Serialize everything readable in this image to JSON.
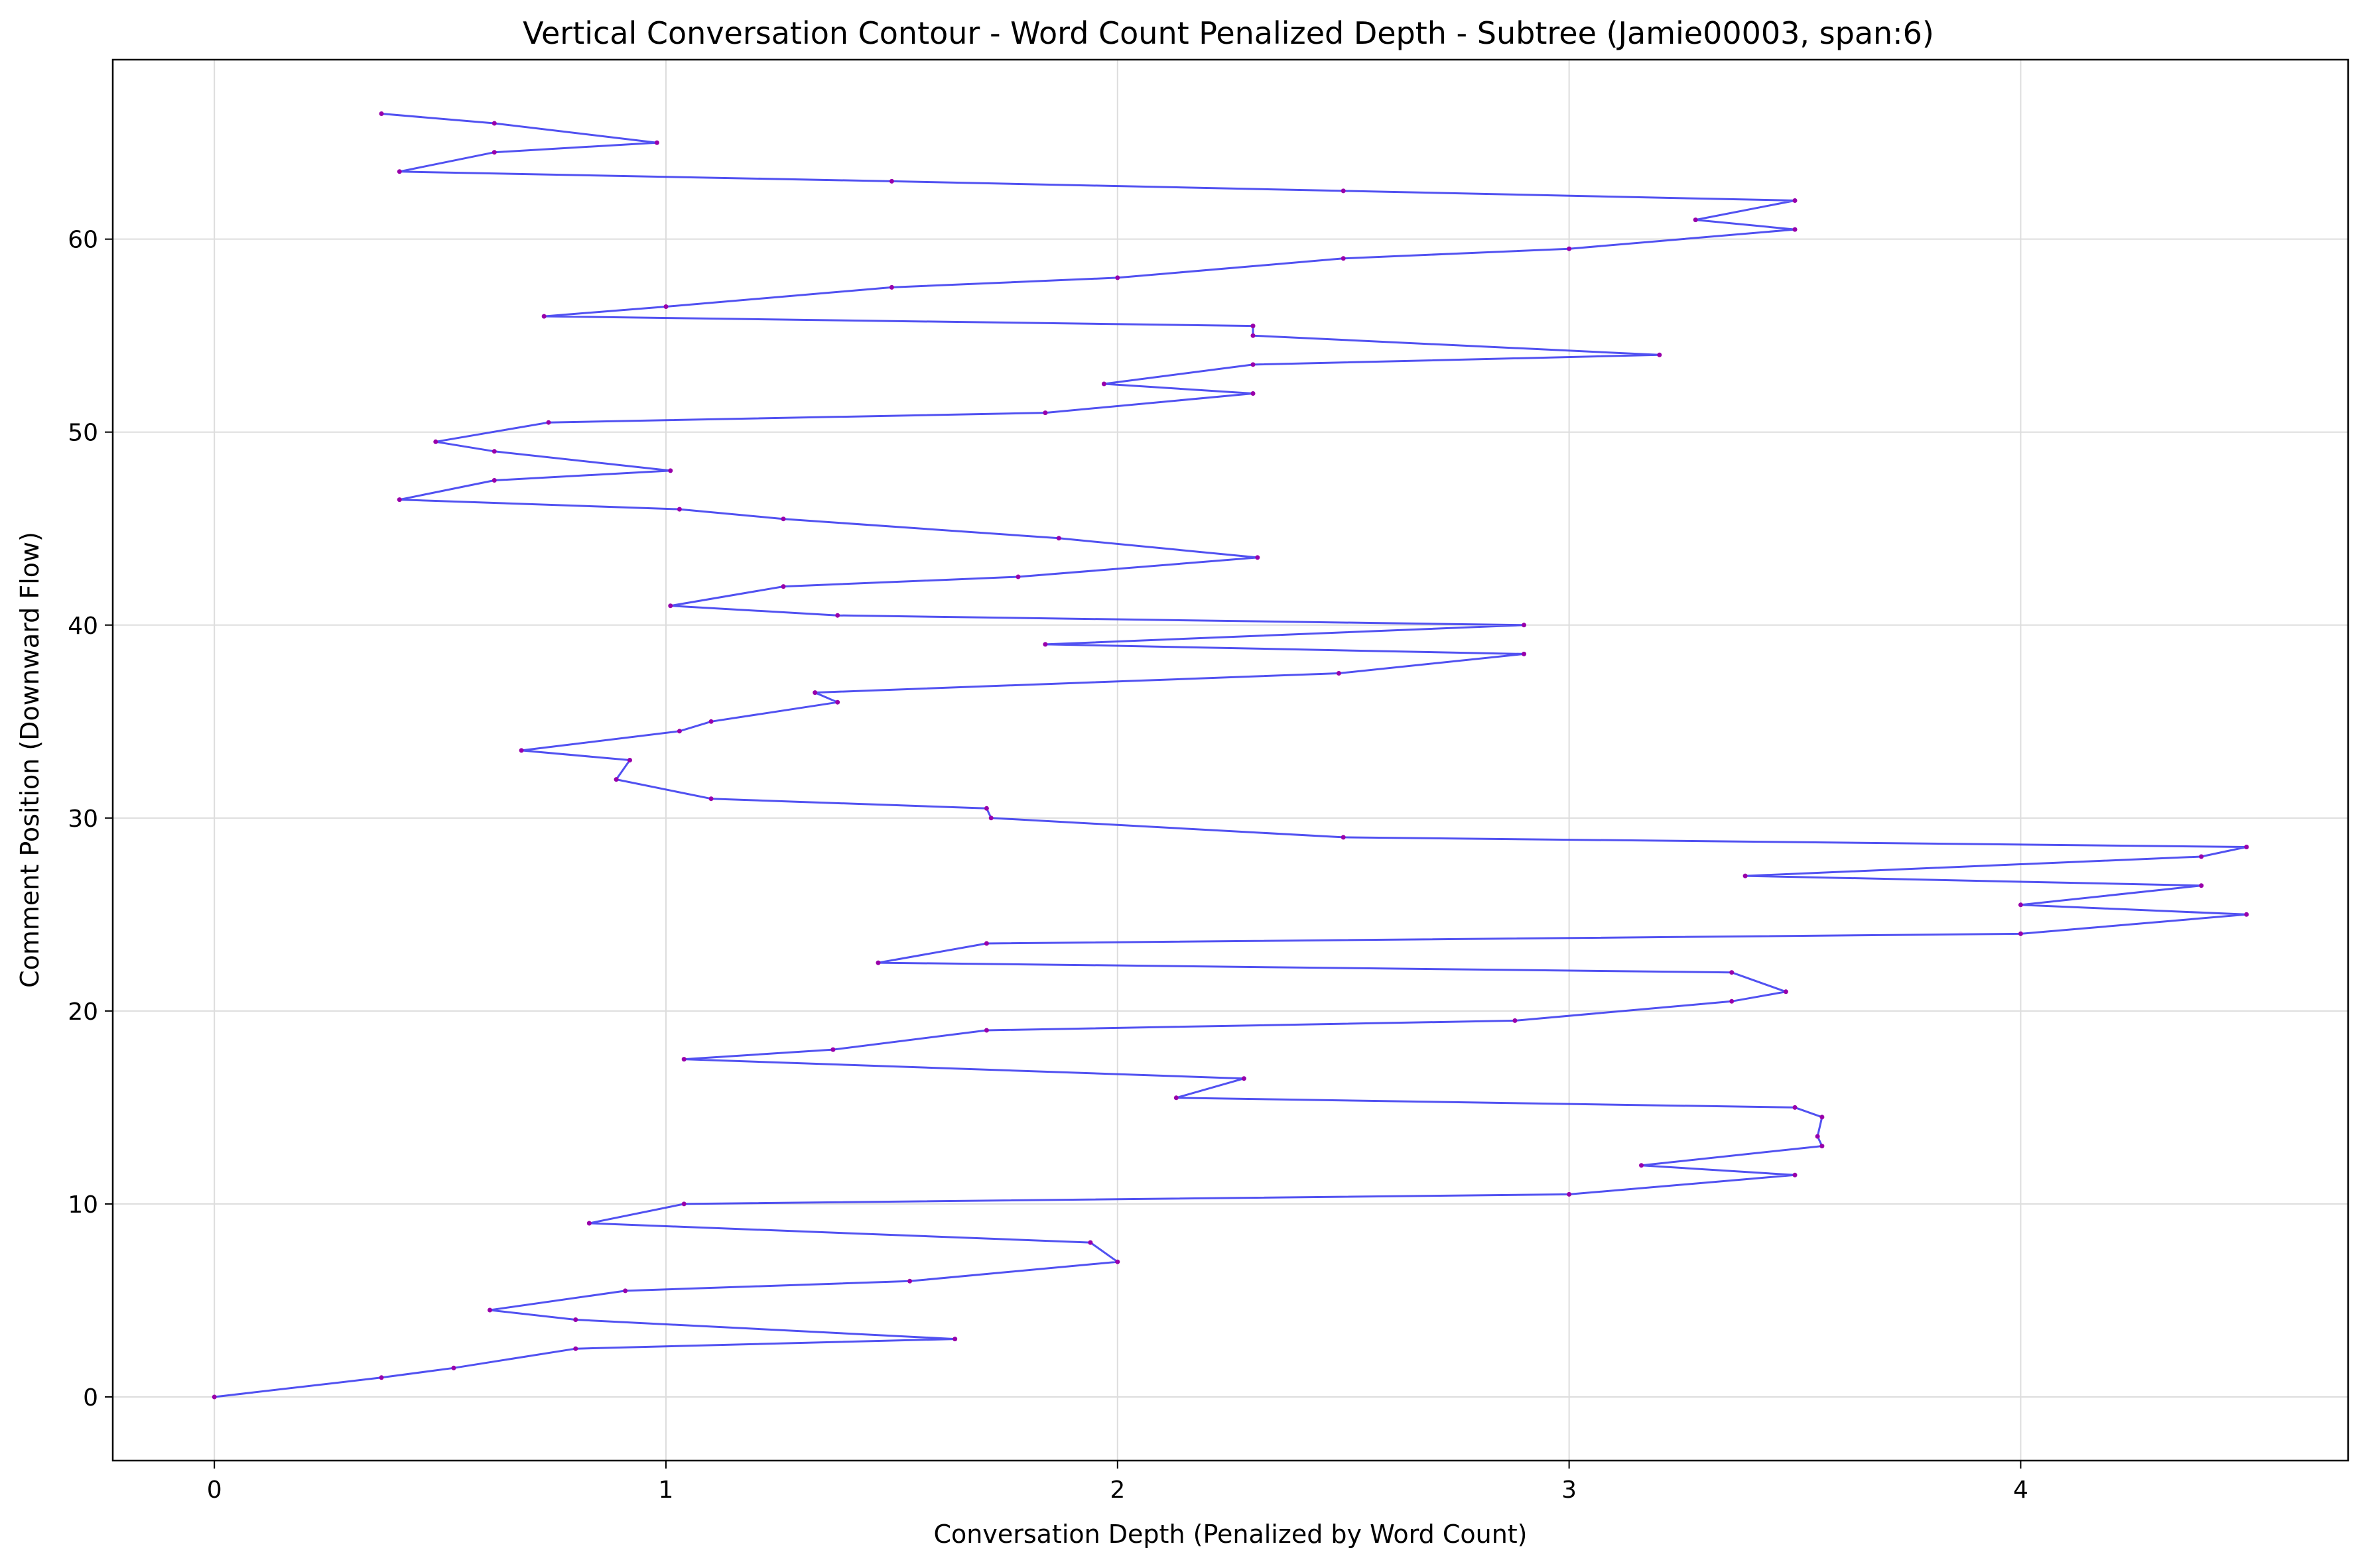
{
  "chart_data": {
    "type": "line",
    "title": "Vertical Conversation Contour - Word Count Penalized Depth - Subtree (Jamie00003, span:6)",
    "xlabel": "Conversation Depth (Penalized by Word Count)",
    "ylabel": "Comment Position (Downward Flow)",
    "xlim": [
      -0.225,
      4.725
    ],
    "ylim": [
      -3.3,
      69.3
    ],
    "xticks": [
      0,
      1,
      2,
      3,
      4
    ],
    "yticks": [
      0,
      10,
      20,
      30,
      40,
      50,
      60
    ],
    "grid": true,
    "line_color": "#3333ee",
    "marker_color": "#9900aa",
    "series": [
      {
        "points": [
          [
            0,
            0
          ],
          [
            0.37,
            1.0
          ],
          [
            0.53,
            1.5
          ],
          [
            0.8,
            2.5
          ],
          [
            1.64,
            3.0
          ],
          [
            0.8,
            4.0
          ],
          [
            0.61,
            4.5
          ],
          [
            0.91,
            5.5
          ],
          [
            1.54,
            6.0
          ],
          [
            2.0,
            7.0
          ],
          [
            1.94,
            8.0
          ],
          [
            0.83,
            9.0
          ],
          [
            1.04,
            10.0
          ],
          [
            3.0,
            10.5
          ],
          [
            3.5,
            11.5
          ],
          [
            3.16,
            12.0
          ],
          [
            3.56,
            13.0
          ],
          [
            3.55,
            13.5
          ],
          [
            3.56,
            14.5
          ],
          [
            3.5,
            15.0
          ],
          [
            2.13,
            15.5
          ],
          [
            2.28,
            16.5
          ],
          [
            1.04,
            17.5
          ],
          [
            1.37,
            18.0
          ],
          [
            1.71,
            19.0
          ],
          [
            2.88,
            19.5
          ],
          [
            3.36,
            20.5
          ],
          [
            3.48,
            21.0
          ],
          [
            3.36,
            22.0
          ],
          [
            1.47,
            22.5
          ],
          [
            1.71,
            23.5
          ],
          [
            4.0,
            24.0
          ],
          [
            4.5,
            25.0
          ],
          [
            4.0,
            25.5
          ],
          [
            4.4,
            26.5
          ],
          [
            3.39,
            27.0
          ],
          [
            4.4,
            28.0
          ],
          [
            4.5,
            28.5
          ],
          [
            2.5,
            29.0
          ],
          [
            1.72,
            30.0
          ],
          [
            1.71,
            30.5
          ],
          [
            1.1,
            31.0
          ],
          [
            0.89,
            32.0
          ],
          [
            0.92,
            33.0
          ],
          [
            0.68,
            33.5
          ],
          [
            1.03,
            34.5
          ],
          [
            1.1,
            35.0
          ],
          [
            1.38,
            36.0
          ],
          [
            1.33,
            36.5
          ],
          [
            2.49,
            37.5
          ],
          [
            2.9,
            38.5
          ],
          [
            1.84,
            39.0
          ],
          [
            2.9,
            40.0
          ],
          [
            1.38,
            40.5
          ],
          [
            1.01,
            41.0
          ],
          [
            1.26,
            42.0
          ],
          [
            1.78,
            42.5
          ],
          [
            2.31,
            43.5
          ],
          [
            1.87,
            44.5
          ],
          [
            1.26,
            45.5
          ],
          [
            1.03,
            46.0
          ],
          [
            0.41,
            46.5
          ],
          [
            0.62,
            47.5
          ],
          [
            1.01,
            48.0
          ],
          [
            0.62,
            49.0
          ],
          [
            0.49,
            49.5
          ],
          [
            0.74,
            50.5
          ],
          [
            1.84,
            51.0
          ],
          [
            2.3,
            52.0
          ],
          [
            1.97,
            52.5
          ],
          [
            2.3,
            53.5
          ],
          [
            3.2,
            54.0
          ],
          [
            2.3,
            55.0
          ],
          [
            2.3,
            55.5
          ],
          [
            0.73,
            56.0
          ],
          [
            1.0,
            56.5
          ],
          [
            1.5,
            57.5
          ],
          [
            2.0,
            58.0
          ],
          [
            2.5,
            59.0
          ],
          [
            3.0,
            59.5
          ],
          [
            3.5,
            60.5
          ],
          [
            3.28,
            61.0
          ],
          [
            3.5,
            62.0
          ],
          [
            2.5,
            62.5
          ],
          [
            1.5,
            63.0
          ],
          [
            0.41,
            63.5
          ],
          [
            0.62,
            64.5
          ],
          [
            0.98,
            65.0
          ],
          [
            0.62,
            66.0
          ],
          [
            0.37,
            66.5
          ]
        ]
      }
    ]
  }
}
